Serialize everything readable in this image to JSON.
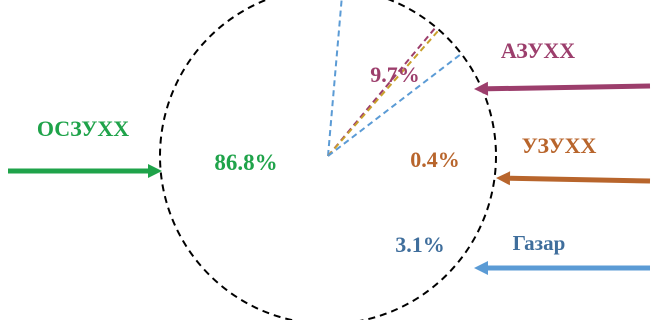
{
  "chart_data": {
    "type": "pie",
    "title": "",
    "slices": [
      {
        "name": "АЗУХХ",
        "value": 9.7,
        "value_label": "9.7%",
        "color": "#9C3E6C",
        "divider_color": "#9C3E6C"
      },
      {
        "name": "УЗУХХ",
        "value": 0.4,
        "value_label": "0.4%",
        "color": "#B8652C",
        "divider_color": "#C9A02C"
      },
      {
        "name": "Газар",
        "value": 3.1,
        "value_label": "3.1%",
        "color": "#3F6E9C",
        "divider_color": "#5B9BD5"
      },
      {
        "name": "ОСЗУХХ",
        "value": 86.8,
        "value_label": "86.8%",
        "color": "#1FA34A",
        "divider_color": "#5B9BD5"
      }
    ],
    "outline": "dashed",
    "start_angle_deg": 5
  },
  "colors": {
    "outline": "#000000",
    "arrow_azuhh": "#9C3E6C",
    "arrow_uzuhh": "#B8652C",
    "arrow_gazar": "#5B9BD5",
    "arrow_oszuhh": "#1FA34A"
  }
}
